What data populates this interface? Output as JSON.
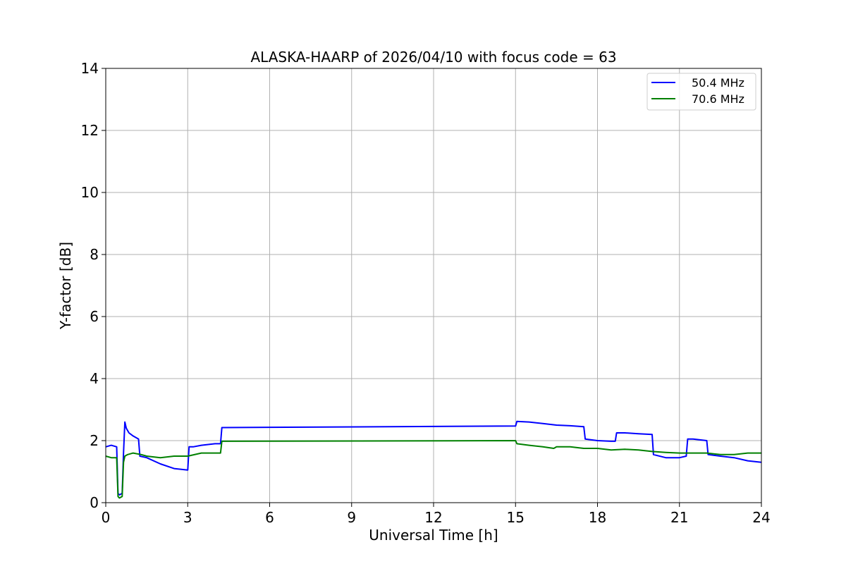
{
  "chart_data": {
    "type": "line",
    "title": "ALASKA-HAARP of 2026/04/10 with focus code = 63",
    "xlabel": "Universal Time [h]",
    "ylabel": "Y-factor [dB]",
    "xlim": [
      0,
      24
    ],
    "ylim": [
      0,
      14
    ],
    "x_ticks": [
      0,
      3,
      6,
      9,
      12,
      15,
      18,
      21,
      24
    ],
    "y_ticks": [
      0,
      2,
      4,
      6,
      8,
      10,
      12,
      14
    ],
    "grid": true,
    "legend_position": "top-right",
    "series": [
      {
        "name": "50.4 MHz",
        "color": "#0000ff",
        "x": [
          0.0,
          0.2,
          0.4,
          0.45,
          0.5,
          0.6,
          0.65,
          0.7,
          0.75,
          0.85,
          1.0,
          1.2,
          1.25,
          1.5,
          2.0,
          2.5,
          3.0,
          3.05,
          3.2,
          3.5,
          4.0,
          4.2,
          4.25,
          15.0,
          15.05,
          15.5,
          16.0,
          16.5,
          17.0,
          17.5,
          17.55,
          18.0,
          18.5,
          18.65,
          18.7,
          19.0,
          19.5,
          20.0,
          20.05,
          20.5,
          21.0,
          21.25,
          21.3,
          21.5,
          22.0,
          22.05,
          22.5,
          23.0,
          23.5,
          24.0
        ],
        "y": [
          1.8,
          1.85,
          1.8,
          0.3,
          0.25,
          0.3,
          1.6,
          2.6,
          2.4,
          2.25,
          2.15,
          2.05,
          1.5,
          1.45,
          1.25,
          1.1,
          1.05,
          1.8,
          1.8,
          1.85,
          1.9,
          1.9,
          2.42,
          2.47,
          2.62,
          2.6,
          2.55,
          2.5,
          2.48,
          2.45,
          2.05,
          2.0,
          1.98,
          1.98,
          2.25,
          2.25,
          2.22,
          2.2,
          1.55,
          1.45,
          1.45,
          1.5,
          2.05,
          2.05,
          2.0,
          1.55,
          1.5,
          1.45,
          1.35,
          1.3
        ]
      },
      {
        "name": "70.6 MHz",
        "color": "#008000",
        "x": [
          0.0,
          0.2,
          0.4,
          0.45,
          0.5,
          0.6,
          0.65,
          0.7,
          0.8,
          1.0,
          1.3,
          1.5,
          2.0,
          2.5,
          3.0,
          3.5,
          4.0,
          4.2,
          4.25,
          15.0,
          15.05,
          15.5,
          16.0,
          16.4,
          16.5,
          17.0,
          17.5,
          18.0,
          18.5,
          19.0,
          19.5,
          20.0,
          20.5,
          21.0,
          21.5,
          22.0,
          22.5,
          23.0,
          23.5,
          24.0
        ],
        "y": [
          1.5,
          1.45,
          1.45,
          0.2,
          0.15,
          0.2,
          1.3,
          1.5,
          1.55,
          1.6,
          1.55,
          1.5,
          1.45,
          1.5,
          1.5,
          1.6,
          1.6,
          1.6,
          1.98,
          2.0,
          1.9,
          1.85,
          1.8,
          1.75,
          1.8,
          1.8,
          1.75,
          1.75,
          1.7,
          1.72,
          1.7,
          1.65,
          1.62,
          1.6,
          1.6,
          1.6,
          1.55,
          1.55,
          1.6,
          1.6
        ]
      }
    ]
  }
}
